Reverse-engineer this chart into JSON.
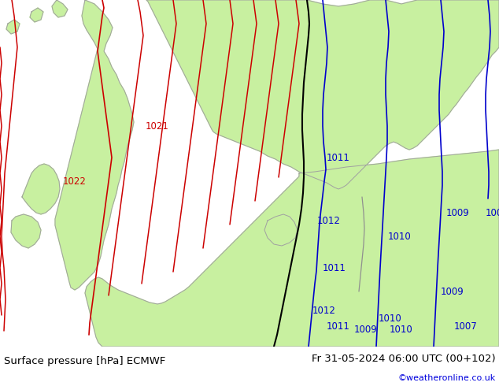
{
  "title_left": "Surface pressure [hPa] ECMWF",
  "title_right": "Fr 31-05-2024 06:00 UTC (00+102)",
  "watermark": "©weatheronline.co.uk",
  "background_land": "#c8f0a0",
  "background_sea": "#d8d8d8",
  "fig_width": 6.34,
  "fig_height": 4.9,
  "dpi": 100,
  "bottom_bar_color": "#e8e8e8",
  "title_fontsize": 9.5,
  "watermark_color": "#0000dd",
  "watermark_fontsize": 8
}
